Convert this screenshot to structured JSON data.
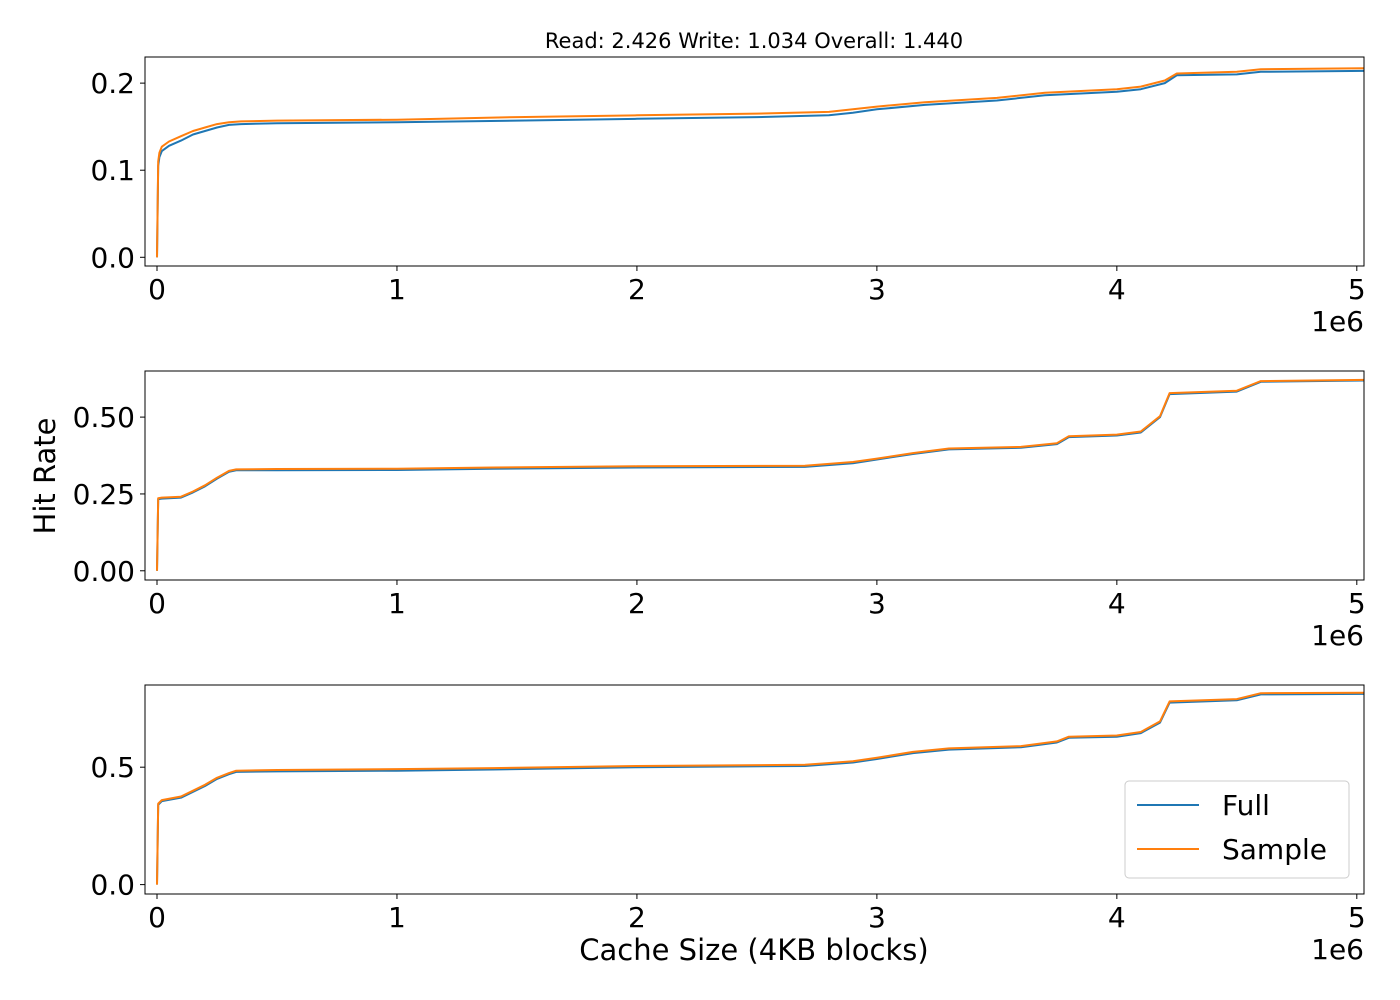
{
  "chart_data": [
    {
      "type": "line",
      "title": "Read: 2.426 Write: 1.034 Overall: 1.440",
      "xlabel": "",
      "ylabel": "",
      "xlim": [
        -50000,
        5030000
      ],
      "ylim": [
        -0.01,
        0.23
      ],
      "x_offset_label": "1e6",
      "x_tick_values": [
        0,
        1000000,
        2000000,
        3000000,
        4000000,
        5000000
      ],
      "x_tick_labels": [
        "0",
        "1",
        "2",
        "3",
        "4",
        "5"
      ],
      "y_tick_values": [
        0.0,
        0.1,
        0.2
      ],
      "y_tick_labels": [
        "0.0",
        "0.1",
        "0.2"
      ],
      "series": [
        {
          "name": "Full",
          "color": "#1f77b4",
          "x": [
            0,
            5000,
            10000,
            20000,
            50000,
            100000,
            150000,
            200000,
            250000,
            300000,
            350000,
            500000,
            1000000,
            1500000,
            2000000,
            2500000,
            2800000,
            2900000,
            3000000,
            3200000,
            3500000,
            3700000,
            4000000,
            4100000,
            4200000,
            4250000,
            4500000,
            4600000,
            5030000
          ],
          "y": [
            0.0,
            0.105,
            0.115,
            0.122,
            0.128,
            0.134,
            0.141,
            0.145,
            0.149,
            0.152,
            0.153,
            0.154,
            0.155,
            0.157,
            0.159,
            0.161,
            0.163,
            0.166,
            0.17,
            0.175,
            0.18,
            0.186,
            0.19,
            0.193,
            0.2,
            0.209,
            0.21,
            0.213,
            0.214
          ]
        },
        {
          "name": "Sample",
          "color": "#ff7f0e",
          "x": [
            0,
            5000,
            10000,
            20000,
            50000,
            100000,
            150000,
            200000,
            250000,
            300000,
            350000,
            500000,
            1000000,
            1500000,
            2000000,
            2500000,
            2800000,
            2900000,
            3000000,
            3200000,
            3500000,
            3700000,
            4000000,
            4100000,
            4200000,
            4250000,
            4500000,
            4600000,
            5030000
          ],
          "y": [
            0.0,
            0.11,
            0.12,
            0.127,
            0.133,
            0.139,
            0.145,
            0.149,
            0.153,
            0.155,
            0.156,
            0.157,
            0.158,
            0.161,
            0.163,
            0.165,
            0.167,
            0.17,
            0.173,
            0.178,
            0.183,
            0.189,
            0.193,
            0.196,
            0.203,
            0.211,
            0.213,
            0.216,
            0.217
          ]
        }
      ]
    },
    {
      "type": "line",
      "title": "",
      "xlabel": "",
      "ylabel": "Hit Rate",
      "xlim": [
        -50000,
        5030000
      ],
      "ylim": [
        -0.03,
        0.65
      ],
      "x_offset_label": "1e6",
      "x_tick_values": [
        0,
        1000000,
        2000000,
        3000000,
        4000000,
        5000000
      ],
      "x_tick_labels": [
        "0",
        "1",
        "2",
        "3",
        "4",
        "5"
      ],
      "y_tick_values": [
        0.0,
        0.25,
        0.5
      ],
      "y_tick_labels": [
        "0.00",
        "0.25",
        "0.50"
      ],
      "series": [
        {
          "name": "Full",
          "color": "#1f77b4",
          "x": [
            0,
            5000,
            20000,
            100000,
            150000,
            200000,
            250000,
            300000,
            330000,
            500000,
            1000000,
            1400000,
            2000000,
            2700000,
            2900000,
            3000000,
            3150000,
            3300000,
            3600000,
            3750000,
            3800000,
            4000000,
            4100000,
            4180000,
            4220000,
            4500000,
            4600000,
            5030000
          ],
          "y": [
            0.0,
            0.233,
            0.235,
            0.238,
            0.255,
            0.275,
            0.3,
            0.322,
            0.327,
            0.327,
            0.328,
            0.332,
            0.336,
            0.338,
            0.35,
            0.362,
            0.38,
            0.395,
            0.4,
            0.412,
            0.435,
            0.44,
            0.45,
            0.5,
            0.575,
            0.583,
            0.615,
            0.619
          ]
        },
        {
          "name": "Sample",
          "color": "#ff7f0e",
          "x": [
            0,
            5000,
            20000,
            100000,
            150000,
            200000,
            250000,
            300000,
            330000,
            500000,
            1000000,
            1400000,
            2000000,
            2700000,
            2900000,
            3000000,
            3150000,
            3300000,
            3600000,
            3750000,
            3800000,
            4000000,
            4100000,
            4180000,
            4220000,
            4500000,
            4600000,
            5030000
          ],
          "y": [
            0.0,
            0.236,
            0.238,
            0.241,
            0.258,
            0.278,
            0.303,
            0.325,
            0.33,
            0.331,
            0.332,
            0.336,
            0.34,
            0.342,
            0.354,
            0.365,
            0.383,
            0.398,
            0.403,
            0.415,
            0.438,
            0.443,
            0.453,
            0.503,
            0.578,
            0.586,
            0.617,
            0.621
          ]
        }
      ]
    },
    {
      "type": "line",
      "title": "",
      "xlabel": "Cache Size (4KB blocks)",
      "ylabel": "",
      "xlim": [
        -50000,
        5030000
      ],
      "ylim": [
        -0.04,
        0.85
      ],
      "x_offset_label": "1e6",
      "x_tick_values": [
        0,
        1000000,
        2000000,
        3000000,
        4000000,
        5000000
      ],
      "x_tick_labels": [
        "0",
        "1",
        "2",
        "3",
        "4",
        "5"
      ],
      "y_tick_values": [
        0.0,
        0.5
      ],
      "y_tick_labels": [
        "0.0",
        "0.5"
      ],
      "legend": "bottom-right",
      "series": [
        {
          "name": "Full",
          "color": "#1f77b4",
          "x": [
            0,
            5000,
            20000,
            100000,
            150000,
            200000,
            250000,
            300000,
            330000,
            500000,
            1000000,
            1400000,
            2000000,
            2700000,
            2900000,
            3000000,
            3150000,
            3300000,
            3600000,
            3750000,
            3800000,
            4000000,
            4100000,
            4180000,
            4220000,
            4500000,
            4600000,
            5030000
          ],
          "y": [
            0.0,
            0.34,
            0.355,
            0.37,
            0.395,
            0.42,
            0.45,
            0.47,
            0.48,
            0.482,
            0.485,
            0.49,
            0.5,
            0.505,
            0.52,
            0.535,
            0.56,
            0.575,
            0.585,
            0.605,
            0.625,
            0.63,
            0.645,
            0.69,
            0.775,
            0.785,
            0.81,
            0.812
          ]
        },
        {
          "name": "Sample",
          "color": "#ff7f0e",
          "x": [
            0,
            5000,
            20000,
            100000,
            150000,
            200000,
            250000,
            300000,
            330000,
            500000,
            1000000,
            1400000,
            2000000,
            2700000,
            2900000,
            3000000,
            3150000,
            3300000,
            3600000,
            3750000,
            3800000,
            4000000,
            4100000,
            4180000,
            4220000,
            4500000,
            4600000,
            5030000
          ],
          "y": [
            0.0,
            0.345,
            0.36,
            0.375,
            0.4,
            0.425,
            0.455,
            0.475,
            0.485,
            0.488,
            0.492,
            0.496,
            0.505,
            0.51,
            0.525,
            0.54,
            0.565,
            0.58,
            0.59,
            0.61,
            0.63,
            0.635,
            0.65,
            0.695,
            0.78,
            0.79,
            0.815,
            0.817
          ]
        }
      ]
    }
  ]
}
